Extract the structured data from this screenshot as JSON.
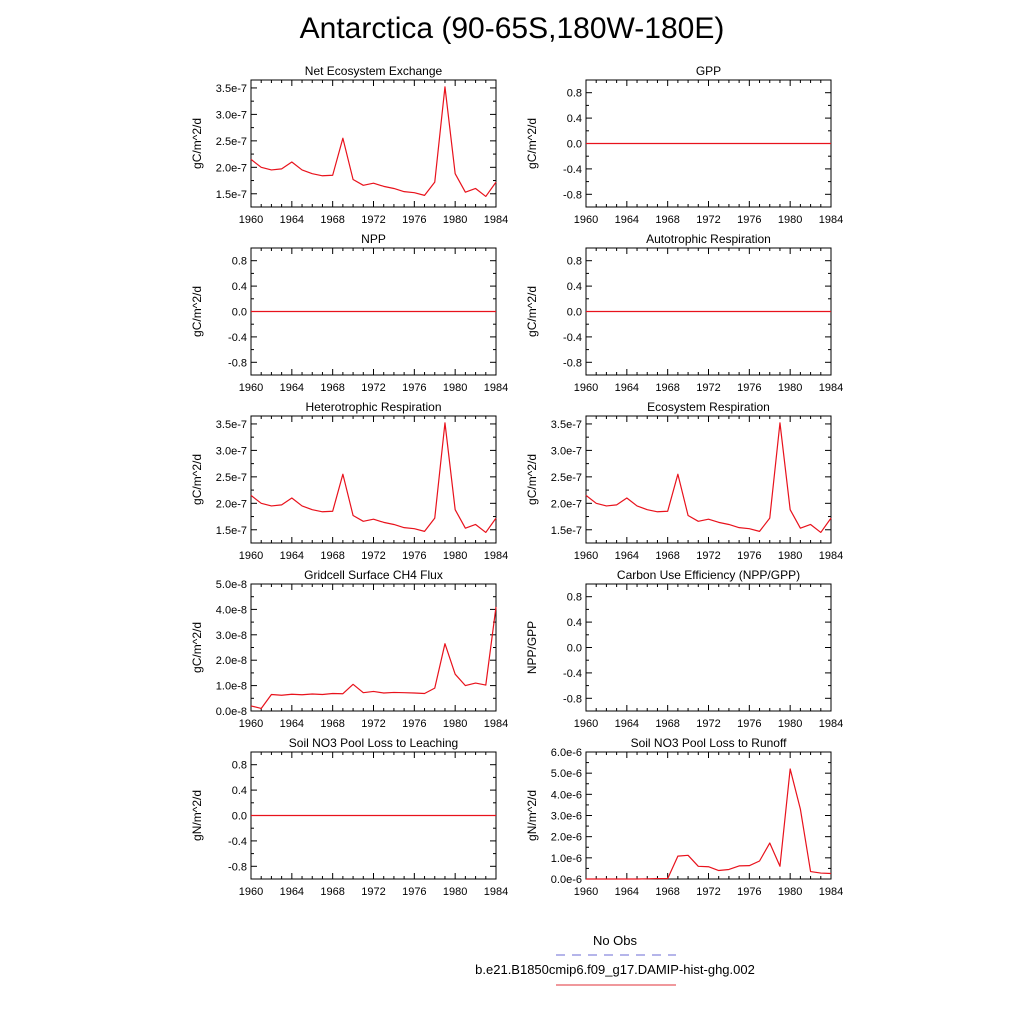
{
  "figure": {
    "title": "Antarctica (90-65S,180W-180E)"
  },
  "legend": {
    "entries": [
      {
        "label": "No Obs",
        "color": "#6b6bd6",
        "style": "dashed"
      },
      {
        "label": "b.e21.B1850cmip6.f09_g17.DAMIP-hist-ghg.002",
        "color": "#e0303a",
        "style": "solid"
      }
    ]
  },
  "colors": {
    "series": "#e8121c",
    "axis": "#000000"
  },
  "chart_data": [
    {
      "type": "line",
      "title": "Net Ecosystem Exchange",
      "ylabel": "gC/m^2/d",
      "xlim": [
        1960,
        1984
      ],
      "ylim": [
        1.25e-07,
        3.65e-07
      ],
      "xticks": [
        1960,
        1964,
        1968,
        1972,
        1976,
        1980,
        1984
      ],
      "xtick_labels": [
        "1960",
        "1964",
        "1968",
        "1972",
        "1976",
        "1980",
        "1984"
      ],
      "yticks": [
        1.5e-07,
        2e-07,
        2.5e-07,
        3e-07,
        3.5e-07
      ],
      "ytick_labels": [
        "1.5e-7",
        "2.0e-7",
        "2.5e-7",
        "3.0e-7",
        "3.5e-7"
      ],
      "x": [
        1960,
        1961,
        1962,
        1963,
        1964,
        1965,
        1966,
        1967,
        1968,
        1969,
        1970,
        1971,
        1972,
        1973,
        1974,
        1975,
        1976,
        1977,
        1978,
        1979,
        1980,
        1981,
        1982,
        1983,
        1984
      ],
      "values": [
        2.15e-07,
        2e-07,
        1.95e-07,
        1.97e-07,
        2.1e-07,
        1.95e-07,
        1.88e-07,
        1.84e-07,
        1.85e-07,
        2.55e-07,
        1.77e-07,
        1.66e-07,
        1.7e-07,
        1.64e-07,
        1.6e-07,
        1.54e-07,
        1.52e-07,
        1.47e-07,
        1.72e-07,
        3.52e-07,
        1.88e-07,
        1.53e-07,
        1.6e-07,
        1.45e-07,
        1.72e-07
      ]
    },
    {
      "type": "line",
      "title": "GPP",
      "ylabel": "gC/m^2/d",
      "xlim": [
        1960,
        1984
      ],
      "ylim": [
        -1.0,
        1.0
      ],
      "xticks": [
        1960,
        1964,
        1968,
        1972,
        1976,
        1980,
        1984
      ],
      "xtick_labels": [
        "1960",
        "1964",
        "1968",
        "1972",
        "1976",
        "1980",
        "1984"
      ],
      "yticks": [
        -0.8,
        -0.4,
        0.0,
        0.4,
        0.8
      ],
      "ytick_labels": [
        "-0.8",
        "-0.4",
        "0.0",
        "0.4",
        "0.8"
      ],
      "x": [
        1960,
        1984
      ],
      "values": [
        0,
        0
      ]
    },
    {
      "type": "line",
      "title": "NPP",
      "ylabel": "gC/m^2/d",
      "xlim": [
        1960,
        1984
      ],
      "ylim": [
        -1.0,
        1.0
      ],
      "xticks": [
        1960,
        1964,
        1968,
        1972,
        1976,
        1980,
        1984
      ],
      "xtick_labels": [
        "1960",
        "1964",
        "1968",
        "1972",
        "1976",
        "1980",
        "1984"
      ],
      "yticks": [
        -0.8,
        -0.4,
        0.0,
        0.4,
        0.8
      ],
      "ytick_labels": [
        "-0.8",
        "-0.4",
        "0.0",
        "0.4",
        "0.8"
      ],
      "x": [
        1960,
        1984
      ],
      "values": [
        0,
        0
      ]
    },
    {
      "type": "line",
      "title": "Autotrophic Respiration",
      "ylabel": "gC/m^2/d",
      "xlim": [
        1960,
        1984
      ],
      "ylim": [
        -1.0,
        1.0
      ],
      "xticks": [
        1960,
        1964,
        1968,
        1972,
        1976,
        1980,
        1984
      ],
      "xtick_labels": [
        "1960",
        "1964",
        "1968",
        "1972",
        "1976",
        "1980",
        "1984"
      ],
      "yticks": [
        -0.8,
        -0.4,
        0.0,
        0.4,
        0.8
      ],
      "ytick_labels": [
        "-0.8",
        "-0.4",
        "0.0",
        "0.4",
        "0.8"
      ],
      "x": [
        1960,
        1984
      ],
      "values": [
        0,
        0
      ]
    },
    {
      "type": "line",
      "title": "Heterotrophic Respiration",
      "ylabel": "gC/m^2/d",
      "xlim": [
        1960,
        1984
      ],
      "ylim": [
        1.25e-07,
        3.65e-07
      ],
      "xticks": [
        1960,
        1964,
        1968,
        1972,
        1976,
        1980,
        1984
      ],
      "xtick_labels": [
        "1960",
        "1964",
        "1968",
        "1972",
        "1976",
        "1980",
        "1984"
      ],
      "yticks": [
        1.5e-07,
        2e-07,
        2.5e-07,
        3e-07,
        3.5e-07
      ],
      "ytick_labels": [
        "1.5e-7",
        "2.0e-7",
        "2.5e-7",
        "3.0e-7",
        "3.5e-7"
      ],
      "x": [
        1960,
        1961,
        1962,
        1963,
        1964,
        1965,
        1966,
        1967,
        1968,
        1969,
        1970,
        1971,
        1972,
        1973,
        1974,
        1975,
        1976,
        1977,
        1978,
        1979,
        1980,
        1981,
        1982,
        1983,
        1984
      ],
      "values": [
        2.15e-07,
        2e-07,
        1.95e-07,
        1.97e-07,
        2.1e-07,
        1.95e-07,
        1.88e-07,
        1.84e-07,
        1.85e-07,
        2.55e-07,
        1.77e-07,
        1.66e-07,
        1.7e-07,
        1.64e-07,
        1.6e-07,
        1.54e-07,
        1.52e-07,
        1.47e-07,
        1.72e-07,
        3.52e-07,
        1.88e-07,
        1.53e-07,
        1.6e-07,
        1.45e-07,
        1.72e-07
      ]
    },
    {
      "type": "line",
      "title": "Ecosystem Respiration",
      "ylabel": "gC/m^2/d",
      "xlim": [
        1960,
        1984
      ],
      "ylim": [
        1.25e-07,
        3.65e-07
      ],
      "xticks": [
        1960,
        1964,
        1968,
        1972,
        1976,
        1980,
        1984
      ],
      "xtick_labels": [
        "1960",
        "1964",
        "1968",
        "1972",
        "1976",
        "1980",
        "1984"
      ],
      "yticks": [
        1.5e-07,
        2e-07,
        2.5e-07,
        3e-07,
        3.5e-07
      ],
      "ytick_labels": [
        "1.5e-7",
        "2.0e-7",
        "2.5e-7",
        "3.0e-7",
        "3.5e-7"
      ],
      "x": [
        1960,
        1961,
        1962,
        1963,
        1964,
        1965,
        1966,
        1967,
        1968,
        1969,
        1970,
        1971,
        1972,
        1973,
        1974,
        1975,
        1976,
        1977,
        1978,
        1979,
        1980,
        1981,
        1982,
        1983,
        1984
      ],
      "values": [
        2.15e-07,
        2e-07,
        1.95e-07,
        1.97e-07,
        2.1e-07,
        1.95e-07,
        1.88e-07,
        1.84e-07,
        1.85e-07,
        2.55e-07,
        1.77e-07,
        1.66e-07,
        1.7e-07,
        1.64e-07,
        1.6e-07,
        1.54e-07,
        1.52e-07,
        1.47e-07,
        1.72e-07,
        3.52e-07,
        1.88e-07,
        1.53e-07,
        1.6e-07,
        1.45e-07,
        1.72e-07
      ]
    },
    {
      "type": "line",
      "title": "Gridcell Surface CH4 Flux",
      "ylabel": "gC/m^2/d",
      "xlim": [
        1960,
        1984
      ],
      "ylim": [
        0,
        5e-08
      ],
      "xticks": [
        1960,
        1964,
        1968,
        1972,
        1976,
        1980,
        1984
      ],
      "xtick_labels": [
        "1960",
        "1964",
        "1968",
        "1972",
        "1976",
        "1980",
        "1984"
      ],
      "yticks": [
        0,
        1e-08,
        2e-08,
        3e-08,
        4e-08,
        5e-08
      ],
      "ytick_labels": [
        "0.0e-8",
        "1.0e-8",
        "2.0e-8",
        "3.0e-8",
        "4.0e-8",
        "5.0e-8"
      ],
      "x": [
        1960,
        1961,
        1962,
        1963,
        1964,
        1965,
        1966,
        1967,
        1968,
        1969,
        1970,
        1971,
        1972,
        1973,
        1974,
        1975,
        1976,
        1977,
        1978,
        1979,
        1980,
        1981,
        1982,
        1983,
        1984
      ],
      "values": [
        2e-09,
        1e-09,
        6.5e-09,
        6.2e-09,
        6.6e-09,
        6.4e-09,
        6.7e-09,
        6.5e-09,
        6.9e-09,
        6.8e-09,
        1.05e-08,
        7.2e-09,
        7.7e-09,
        7.1e-09,
        7.3e-09,
        7.2e-09,
        7.1e-09,
        6.9e-09,
        9e-09,
        2.65e-08,
        1.45e-08,
        1e-08,
        1.1e-08,
        1.02e-08,
        4.1e-08
      ]
    },
    {
      "type": "line",
      "title": "Carbon Use Efficiency (NPP/GPP)",
      "ylabel": "NPP/GPP",
      "xlim": [
        1960,
        1984
      ],
      "ylim": [
        -1.0,
        1.0
      ],
      "xticks": [
        1960,
        1964,
        1968,
        1972,
        1976,
        1980,
        1984
      ],
      "xtick_labels": [
        "1960",
        "1964",
        "1968",
        "1972",
        "1976",
        "1980",
        "1984"
      ],
      "yticks": [
        -0.8,
        -0.4,
        0.0,
        0.4,
        0.8
      ],
      "ytick_labels": [
        "-0.8",
        "-0.4",
        "0.0",
        "0.4",
        "0.8"
      ],
      "x": [],
      "values": []
    },
    {
      "type": "line",
      "title": "Soil NO3 Pool Loss to Leaching",
      "ylabel": "gN/m^2/d",
      "xlim": [
        1960,
        1984
      ],
      "ylim": [
        -1.0,
        1.0
      ],
      "xticks": [
        1960,
        1964,
        1968,
        1972,
        1976,
        1980,
        1984
      ],
      "xtick_labels": [
        "1960",
        "1964",
        "1968",
        "1972",
        "1976",
        "1980",
        "1984"
      ],
      "yticks": [
        -0.8,
        -0.4,
        0.0,
        0.4,
        0.8
      ],
      "ytick_labels": [
        "-0.8",
        "-0.4",
        "0.0",
        "0.4",
        "0.8"
      ],
      "x": [
        1960,
        1984
      ],
      "values": [
        0,
        0
      ]
    },
    {
      "type": "line",
      "title": "Soil NO3 Pool Loss to Runoff",
      "ylabel": "gN/m^2/d",
      "xlim": [
        1960,
        1984
      ],
      "ylim": [
        0,
        6e-06
      ],
      "xticks": [
        1960,
        1964,
        1968,
        1972,
        1976,
        1980,
        1984
      ],
      "xtick_labels": [
        "1960",
        "1964",
        "1968",
        "1972",
        "1976",
        "1980",
        "1984"
      ],
      "yticks": [
        0,
        1e-06,
        2e-06,
        3e-06,
        4e-06,
        5e-06,
        6e-06
      ],
      "ytick_labels": [
        "0.0e-6",
        "1.0e-6",
        "2.0e-6",
        "3.0e-6",
        "4.0e-6",
        "5.0e-6",
        "6.0e-6"
      ],
      "x": [
        1960,
        1961,
        1962,
        1963,
        1964,
        1965,
        1966,
        1967,
        1968,
        1969,
        1970,
        1971,
        1972,
        1973,
        1974,
        1975,
        1976,
        1977,
        1978,
        1979,
        1980,
        1981,
        1982,
        1983,
        1984
      ],
      "values": [
        0,
        0,
        0,
        0,
        0,
        0,
        1e-08,
        2e-08,
        2e-08,
        1.08e-06,
        1.12e-06,
        6e-07,
        5.8e-07,
        4e-07,
        4.5e-07,
        6.2e-07,
        6.3e-07,
        8.5e-07,
        1.7e-06,
        6e-07,
        5.2e-06,
        3.3e-06,
        3.5e-07,
        2.8e-07,
        2.6e-07
      ]
    }
  ]
}
